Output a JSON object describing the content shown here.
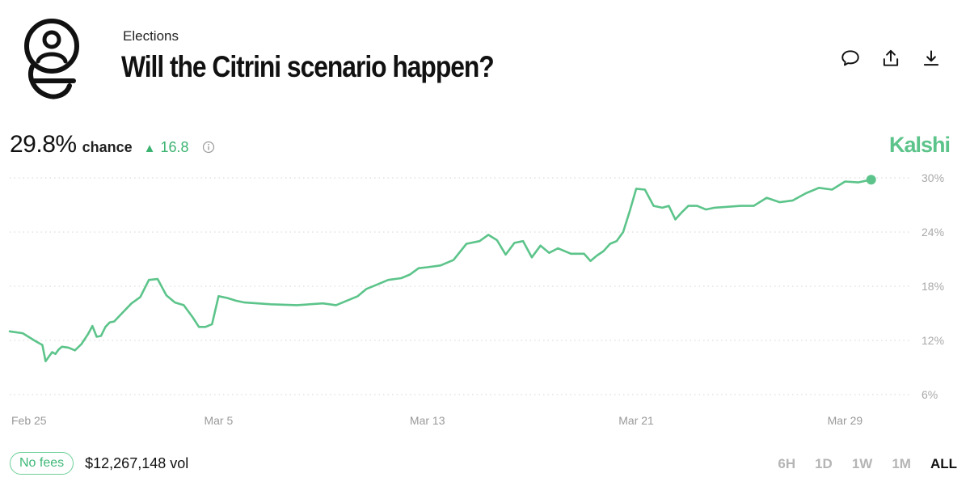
{
  "header": {
    "category": "Elections",
    "title": "Will the Citrini scenario happen?"
  },
  "actions": {
    "icons": [
      "comment-icon",
      "share-icon",
      "download-icon"
    ]
  },
  "stats": {
    "chance_value": "29.8%",
    "chance_label": "chance",
    "delta_value": "16.8",
    "delta_direction": "up"
  },
  "brand": {
    "name": "Kalshi",
    "color": "#5cc48a"
  },
  "colors": {
    "line": "#5cc48a",
    "grid": "#d4d4d4",
    "tick_text": "#a9a9a9"
  },
  "chart_data": {
    "type": "line",
    "title": "",
    "xlabel": "",
    "ylabel": "",
    "y_unit": "%",
    "y_ticks": [
      {
        "value": 30,
        "label": "30%"
      },
      {
        "value": 24,
        "label": "24%"
      },
      {
        "value": 18,
        "label": "18%"
      },
      {
        "value": 12,
        "label": "12%"
      },
      {
        "value": 6,
        "label": "6%"
      }
    ],
    "ylim": [
      6,
      30
    ],
    "xlim": [
      "2026-02-25",
      "2026-03-31"
    ],
    "x_ticks": [
      {
        "date": "2026-02-25",
        "label": "Feb 25"
      },
      {
        "date": "2026-03-05",
        "label": "Mar 5"
      },
      {
        "date": "2026-03-13",
        "label": "Mar 13"
      },
      {
        "date": "2026-03-21",
        "label": "Mar 21"
      },
      {
        "date": "2026-03-29",
        "label": "Mar 29"
      }
    ],
    "grid": "horizontal dotted",
    "end_marker": true,
    "series": [
      {
        "color": "#5cc48a",
        "points": [
          [
            "2026-02-25",
            13.0
          ],
          [
            "2026-02-25",
            12.8
          ],
          [
            "2026-02-26",
            11.9
          ],
          [
            "2026-02-26",
            11.7
          ],
          [
            "2026-02-26",
            11.5
          ],
          [
            "2026-02-26",
            9.7
          ],
          [
            "2026-02-26",
            10.2
          ],
          [
            "2026-02-26",
            10.7
          ],
          [
            "2026-02-26",
            10.5
          ],
          [
            "2026-02-26",
            11.0
          ],
          [
            "2026-02-27",
            11.3
          ],
          [
            "2026-02-27",
            11.2
          ],
          [
            "2026-02-27",
            10.9
          ],
          [
            "2026-02-27",
            11.6
          ],
          [
            "2026-02-28",
            12.7
          ],
          [
            "2026-02-28",
            13.6
          ],
          [
            "2026-02-28",
            12.4
          ],
          [
            "2026-02-28",
            12.5
          ],
          [
            "2026-02-28",
            13.5
          ],
          [
            "2026-02-28",
            14.0
          ],
          [
            "2026-03-01",
            14.1
          ],
          [
            "2026-03-01",
            15.1
          ],
          [
            "2026-03-01",
            16.1
          ],
          [
            "2026-03-02",
            16.8
          ],
          [
            "2026-03-02",
            18.7
          ],
          [
            "2026-03-02",
            18.8
          ],
          [
            "2026-03-03",
            17.0
          ],
          [
            "2026-03-03",
            16.2
          ],
          [
            "2026-03-03",
            15.9
          ],
          [
            "2026-03-04",
            14.6
          ],
          [
            "2026-03-04",
            13.5
          ],
          [
            "2026-03-04",
            13.5
          ],
          [
            "2026-03-04",
            13.8
          ],
          [
            "2026-03-05",
            16.9
          ],
          [
            "2026-03-05",
            16.7
          ],
          [
            "2026-03-05",
            16.4
          ],
          [
            "2026-03-06",
            16.2
          ],
          [
            "2026-03-06",
            16.1
          ],
          [
            "2026-03-07",
            16.0
          ],
          [
            "2026-03-08",
            15.9
          ],
          [
            "2026-03-09",
            16.1
          ],
          [
            "2026-03-09",
            15.9
          ],
          [
            "2026-03-10",
            16.5
          ],
          [
            "2026-03-10",
            16.9
          ],
          [
            "2026-03-10",
            17.7
          ],
          [
            "2026-03-11",
            18.1
          ],
          [
            "2026-03-11",
            18.7
          ],
          [
            "2026-03-12",
            18.9
          ],
          [
            "2026-03-12",
            19.3
          ],
          [
            "2026-03-12",
            20.0
          ],
          [
            "2026-03-13",
            20.1
          ],
          [
            "2026-03-13",
            20.3
          ],
          [
            "2026-03-14",
            20.9
          ],
          [
            "2026-03-14",
            22.7
          ],
          [
            "2026-03-15",
            23.0
          ],
          [
            "2026-03-15",
            23.7
          ],
          [
            "2026-03-15",
            23.1
          ],
          [
            "2026-03-16",
            21.5
          ],
          [
            "2026-03-16",
            22.8
          ],
          [
            "2026-03-16",
            23.0
          ],
          [
            "2026-03-17",
            21.2
          ],
          [
            "2026-03-17",
            22.5
          ],
          [
            "2026-03-17",
            21.7
          ],
          [
            "2026-03-18",
            22.2
          ],
          [
            "2026-03-18",
            21.6
          ],
          [
            "2026-03-19",
            21.6
          ],
          [
            "2026-03-19",
            20.8
          ],
          [
            "2026-03-19",
            21.4
          ],
          [
            "2026-03-19",
            21.9
          ],
          [
            "2026-03-20",
            22.7
          ],
          [
            "2026-03-20",
            23.0
          ],
          [
            "2026-03-20",
            24.0
          ],
          [
            "2026-03-20",
            26.3
          ],
          [
            "2026-03-21",
            28.8
          ],
          [
            "2026-03-21",
            28.7
          ],
          [
            "2026-03-21",
            26.9
          ],
          [
            "2026-03-22",
            26.7
          ],
          [
            "2026-03-22",
            26.9
          ],
          [
            "2026-03-22",
            25.4
          ],
          [
            "2026-03-22",
            26.2
          ],
          [
            "2026-03-23",
            26.9
          ],
          [
            "2026-03-23",
            26.9
          ],
          [
            "2026-03-23",
            26.5
          ],
          [
            "2026-03-24",
            26.7
          ],
          [
            "2026-03-25",
            26.9
          ],
          [
            "2026-03-25",
            26.9
          ],
          [
            "2026-03-26",
            27.8
          ],
          [
            "2026-03-26",
            27.3
          ],
          [
            "2026-03-27",
            27.5
          ],
          [
            "2026-03-27",
            28.3
          ],
          [
            "2026-03-28",
            28.9
          ],
          [
            "2026-03-28",
            28.7
          ],
          [
            "2026-03-29",
            29.6
          ],
          [
            "2026-03-29",
            29.5
          ],
          [
            "2026-03-30",
            29.8
          ]
        ]
      }
    ]
  },
  "footer": {
    "fees_badge": "No fees",
    "volume": "$12,267,148 vol",
    "ranges": [
      {
        "label": "6H",
        "active": false
      },
      {
        "label": "1D",
        "active": false
      },
      {
        "label": "1W",
        "active": false
      },
      {
        "label": "1M",
        "active": false
      },
      {
        "label": "ALL",
        "active": true
      }
    ]
  }
}
